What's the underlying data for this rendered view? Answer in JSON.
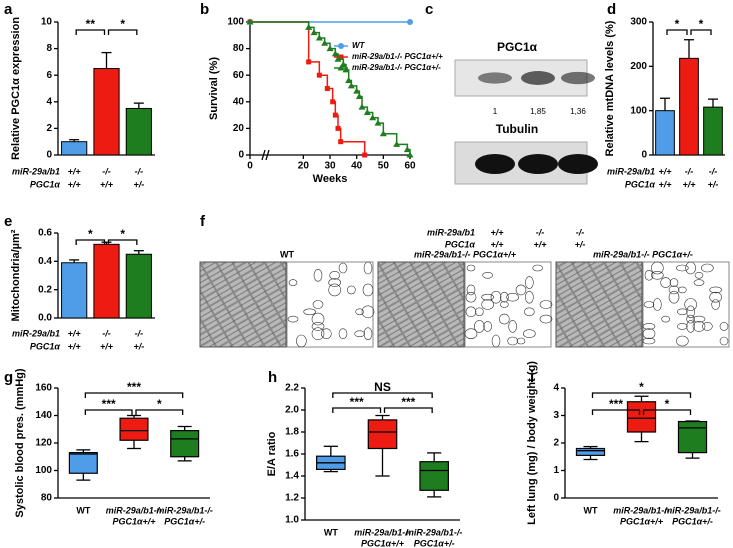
{
  "chart_data": [
    {
      "type": "bar",
      "panel": "a",
      "ylabel": "Relative PGC1α expression",
      "ylim": [
        0,
        10
      ],
      "yticks": [
        0,
        2,
        4,
        6,
        8,
        10
      ],
      "values": [
        1,
        6.5,
        3.5
      ],
      "errors": [
        0.15,
        1.2,
        0.4
      ],
      "colors": [
        "#4f9de8",
        "#ee1b12",
        "#1e7d1e"
      ],
      "genotype": [
        {
          "label": "miR-29a/b1",
          "values": [
            "+/+",
            "-/-",
            "-/-"
          ]
        },
        {
          "label": "PGC1α",
          "values": [
            "+/+",
            "+/+",
            "+/-"
          ]
        }
      ],
      "annotations": [
        "**",
        "*"
      ]
    },
    {
      "type": "survival",
      "panel": "b",
      "ylabel": "Survival (%)",
      "xlabel": "Weeks",
      "xlim": [
        0,
        60
      ],
      "xticks": [
        0,
        20,
        30,
        40,
        50,
        60
      ],
      "ylim": [
        0,
        100
      ],
      "yticks": [
        0,
        20,
        40,
        60,
        80,
        100
      ],
      "series": [
        {
          "name": "WT",
          "color": "#4f9de8",
          "marker": "circle",
          "x": [
            0,
            60
          ],
          "values": [
            100,
            100
          ]
        },
        {
          "name": "miR-29a/b1-/- PGC1α+/+",
          "color": "#ee1b12",
          "marker": "square",
          "x": [
            0,
            22,
            26,
            29,
            31,
            32,
            33,
            34,
            43
          ],
          "values": [
            100,
            70,
            60,
            50,
            40,
            30,
            20,
            10,
            0
          ]
        },
        {
          "name": "miR-29a/b1-/- PGC1α+/-",
          "color": "#1e7d1e",
          "marker": "triangle",
          "x": [
            0,
            22,
            24,
            26,
            28,
            30,
            32,
            33,
            35,
            36,
            37,
            38,
            40,
            41,
            42,
            44,
            46,
            48,
            50,
            55,
            59,
            60
          ],
          "values": [
            100,
            96,
            92,
            88,
            84,
            80,
            76,
            72,
            68,
            64,
            56,
            52,
            48,
            44,
            36,
            32,
            28,
            24,
            16,
            8,
            4,
            0
          ]
        }
      ]
    },
    {
      "type": "blot",
      "panel": "c",
      "title": "PGC1α",
      "loading_title": "Tubulin",
      "values": [
        1,
        1.85,
        1.36
      ],
      "value_labels": [
        "1",
        "1,85",
        "1,36"
      ],
      "genotype": [
        {
          "label": "miR-29a/b1",
          "values": [
            "+/+",
            "-/-",
            "-/-"
          ]
        },
        {
          "label": "PGC1α",
          "values": [
            "+/+",
            "+/+",
            "+/-"
          ]
        }
      ]
    },
    {
      "type": "bar",
      "panel": "d",
      "ylabel": "Relative mtDNA levels (%)",
      "ylim": [
        0,
        300
      ],
      "yticks": [
        0,
        100,
        200,
        300
      ],
      "values": [
        100,
        218,
        108
      ],
      "errors": [
        28,
        42,
        18
      ],
      "colors": [
        "#4f9de8",
        "#ee1b12",
        "#1e7d1e"
      ],
      "genotype": [
        {
          "label": "miR-29a/b1",
          "values": [
            "+/+",
            "-/-",
            "-/-"
          ]
        },
        {
          "label": "PGC1α",
          "values": [
            "+/+",
            "+/+",
            "+/-"
          ]
        }
      ],
      "annotations": [
        "*",
        "*"
      ]
    },
    {
      "type": "bar",
      "panel": "e",
      "ylabel": "Mitochondria/µm²",
      "ylim": [
        0,
        0.6
      ],
      "yticks": [
        {
          "value": 0,
          "label": "0.0"
        },
        0.2,
        0.4,
        0.6
      ],
      "values": [
        0.39,
        0.52,
        0.45
      ],
      "errors": [
        0.02,
        0.015,
        0.025
      ],
      "colors": [
        "#4f9de8",
        "#ee1b12",
        "#1e7d1e"
      ],
      "genotype": [
        {
          "label": "miR-29a/b1",
          "values": [
            "+/+",
            "-/-",
            "-/-"
          ]
        },
        {
          "label": "PGC1α",
          "values": [
            "+/+",
            "+/+",
            "+/-"
          ]
        }
      ],
      "annotations": [
        "*",
        "*"
      ]
    },
    {
      "type": "micrograph",
      "panel": "f",
      "titles": [
        "WT",
        "miR-29a/b1-/- PGC1α+/+",
        "miR-29a/b1-/- PGC1α+/-"
      ]
    },
    {
      "type": "box",
      "panel": "g",
      "ylabel": "Systolic blood pres. (mmHg)",
      "ylim": [
        80,
        160
      ],
      "yticks": [
        80,
        100,
        120,
        140,
        160
      ],
      "categories": [
        [
          "WT"
        ],
        [
          "miR-29a/b1-/-",
          "PGC1α+/+"
        ],
        [
          "miR-29a/b1-/-",
          "PGC1α+/-"
        ]
      ],
      "colors": [
        "#4f9de8",
        "#ee1b12",
        "#1e7d1e"
      ],
      "boxes": [
        {
          "min": 93,
          "q1": 98,
          "median": 112,
          "q3": 113,
          "max": 115
        },
        {
          "min": 116,
          "q1": 122,
          "median": 129,
          "q3": 138,
          "max": 140
        },
        {
          "min": 107,
          "q1": 110,
          "median": 123,
          "q3": 129,
          "max": 132
        }
      ],
      "annotations": [
        "***",
        "*",
        "***"
      ]
    },
    {
      "type": "box",
      "panel": "h",
      "ylabel": "E/A ratio",
      "ylim": [
        1,
        2.2
      ],
      "yticks": [
        {
          "value": 1,
          "label": "1.0"
        },
        1.2,
        1.4,
        1.6,
        1.8,
        {
          "value": 2,
          "label": "2.0"
        },
        2.2
      ],
      "categories": [
        [
          "WT"
        ],
        [
          "miR-29a/b1-/-",
          "PGC1α+/+"
        ],
        [
          "miR-29a/b1-/-",
          "PGC1α+/-"
        ]
      ],
      "colors": [
        "#4f9de8",
        "#ee1b12",
        "#1e7d1e"
      ],
      "boxes": [
        {
          "min": 1.44,
          "q1": 1.46,
          "median": 1.52,
          "q3": 1.58,
          "max": 1.67
        },
        {
          "min": 1.4,
          "q1": 1.65,
          "median": 1.8,
          "q3": 1.91,
          "max": 1.95
        },
        {
          "min": 1.21,
          "q1": 1.27,
          "median": 1.45,
          "q3": 1.53,
          "max": 1.61
        }
      ],
      "annotations": [
        "***",
        "***",
        "NS"
      ]
    },
    {
      "type": "box",
      "panel": "i",
      "ylabel": "Left lung (mg) / body weight (g)",
      "ylim": [
        0,
        4
      ],
      "yticks": [
        0,
        1,
        2,
        3,
        4
      ],
      "categories": [
        [
          "WT"
        ],
        [
          "miR-29a/b1-/-",
          "PGC1α+/+"
        ],
        [
          "miR-29a/b1-/-",
          "PGC1α+/-"
        ]
      ],
      "colors": [
        "#4f9de8",
        "#ee1b12",
        "#1e7d1e"
      ],
      "boxes": [
        {
          "min": 1.4,
          "q1": 1.55,
          "median": 1.72,
          "q3": 1.8,
          "max": 1.87
        },
        {
          "min": 2.05,
          "q1": 2.4,
          "median": 2.9,
          "q3": 3.5,
          "max": 3.7
        },
        {
          "min": 1.45,
          "q1": 1.65,
          "median": 2.55,
          "q3": 2.78,
          "max": 2.8
        }
      ],
      "annotations": [
        "***",
        "*",
        "*"
      ]
    }
  ]
}
